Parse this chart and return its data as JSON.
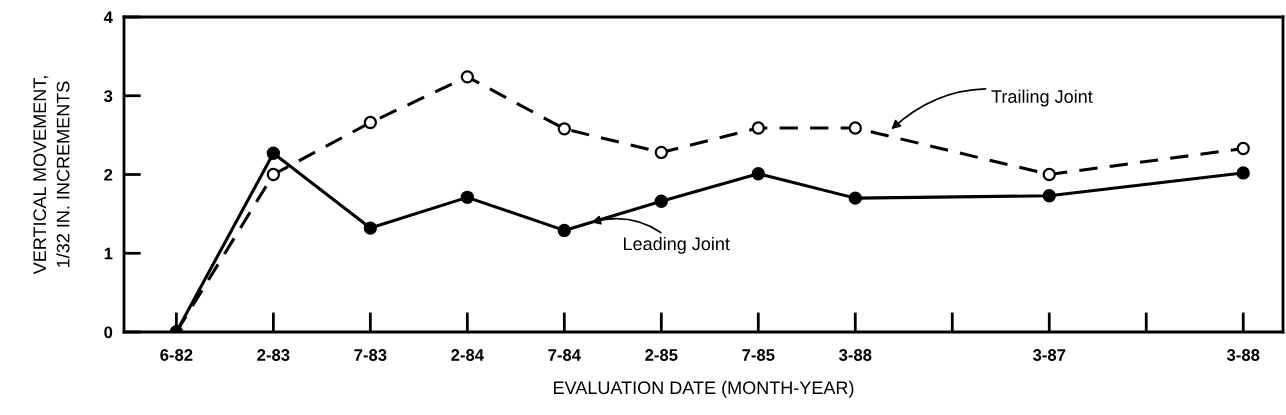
{
  "chart_data": {
    "type": "line",
    "xlabel": "EVALUATION DATE (MONTH-YEAR)",
    "ylabel": "VERTICAL MOVEMENT,\n1/32 IN. INCREMENTS",
    "categories": [
      "6-82",
      "2-83",
      "7-83",
      "2-84",
      "7-84",
      "2-85",
      "7-85",
      "3-88",
      null,
      "3-87",
      null,
      "3-88"
    ],
    "series": [
      {
        "name": "Trailing Joint",
        "color": "#000000",
        "line_style": "dashed",
        "marker": "circle",
        "values": [
          0,
          2.0,
          2.66,
          3.24,
          2.58,
          2.28,
          2.59,
          2.59,
          null,
          2.0,
          null,
          2.33
        ]
      },
      {
        "name": "Leading Joint",
        "color": "#000000",
        "line_style": "solid",
        "marker": "circle",
        "values": [
          0,
          2.27,
          1.32,
          1.71,
          1.29,
          1.66,
          2.01,
          1.7,
          null,
          1.73,
          null,
          2.02
        ]
      }
    ],
    "ylim": [
      0,
      4
    ],
    "yticks": [
      0,
      1,
      2,
      3,
      4
    ],
    "grid": false
  }
}
